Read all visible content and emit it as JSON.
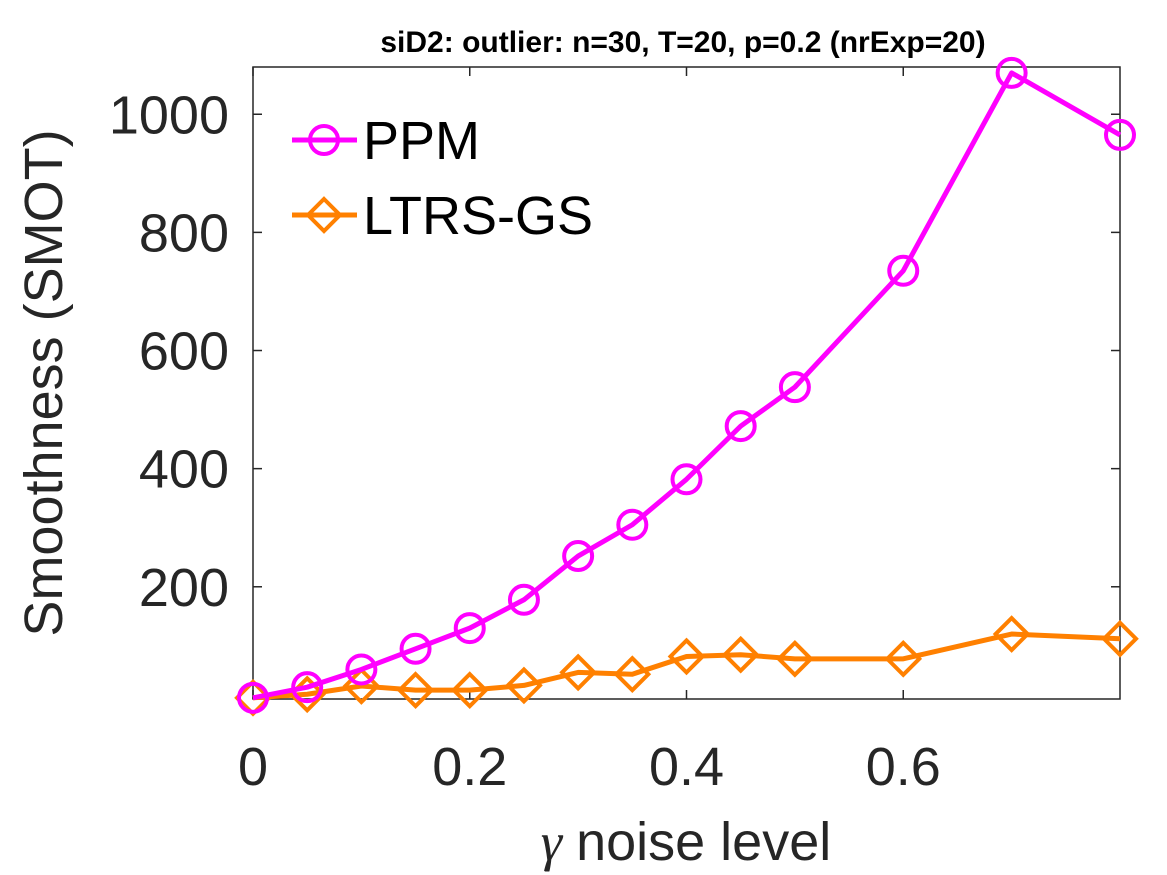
{
  "chart_data": {
    "type": "line",
    "title": "siD2: outlier: n=30, T=20, p=0.2 (nrExp=20)",
    "xlabel": "noise level",
    "xlabel_symbol": "γ",
    "ylabel": "Smoothness (SMOT)",
    "xlim": [
      0,
      0.8
    ],
    "ylim": [
      10,
      1080
    ],
    "xticks": [
      0,
      0.2,
      0.4,
      0.6
    ],
    "xtick_labels": [
      "0",
      "0.2",
      "0.4",
      "0.6"
    ],
    "yticks": [
      200,
      400,
      600,
      800,
      1000
    ],
    "ytick_labels": [
      "200",
      "400",
      "600",
      "800",
      "1000"
    ],
    "grid": false,
    "legend_position": "top-left",
    "x": [
      0,
      0.05,
      0.1,
      0.15,
      0.2,
      0.25,
      0.3,
      0.35,
      0.4,
      0.45,
      0.5,
      0.6,
      0.7,
      0.8
    ],
    "series": [
      {
        "name": "PPM",
        "marker": "circle",
        "color": "#ff00ff",
        "values": [
          12,
          30,
          60,
          95,
          130,
          178,
          252,
          305,
          382,
          472,
          538,
          735,
          1070,
          965
        ]
      },
      {
        "name": "LTRS-GS",
        "marker": "diamond",
        "color": "#ff8000",
        "values": [
          12,
          18,
          32,
          25,
          25,
          33,
          55,
          52,
          82,
          85,
          78,
          78,
          120,
          112
        ]
      }
    ]
  }
}
